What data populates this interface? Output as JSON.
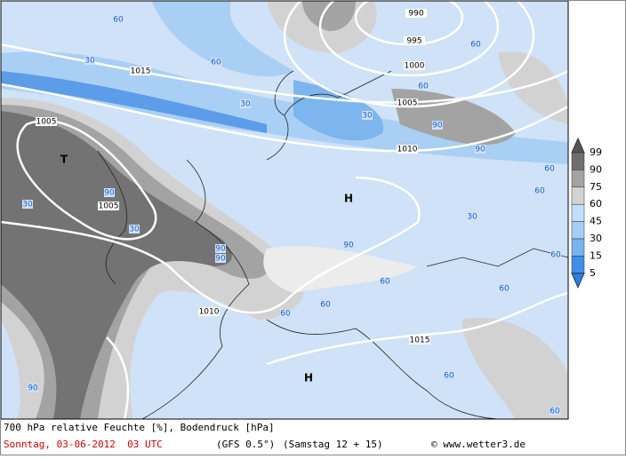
{
  "map": {
    "pressure_labels": [
      "990",
      "995",
      "1000",
      "1015",
      "1005",
      "1005",
      "1010",
      "1005",
      "1010",
      "1015"
    ],
    "humidity_labels": [
      "60",
      "30",
      "60",
      "30",
      "60",
      "60",
      "30",
      "90",
      "90",
      "90",
      "30",
      "30",
      "90",
      "90",
      "90",
      "30",
      "60",
      "60",
      "60",
      "60",
      "60",
      "60",
      "60",
      "90",
      "60",
      "60"
    ],
    "highs": [
      "H",
      "H"
    ],
    "lows": [
      "T"
    ]
  },
  "legend": {
    "ticks": [
      99,
      90,
      75,
      60,
      45,
      30,
      15,
      5
    ]
  },
  "footer": {
    "title": "700 hPa relative Feuchte [%], Bodendruck [hPa]",
    "date": "Sonntag, 03-06-2012  03 UTC",
    "model": "(GFS 0.5°)",
    "run": "(Samstag 12 + 15)",
    "credit": "© www.wetter3.de"
  }
}
